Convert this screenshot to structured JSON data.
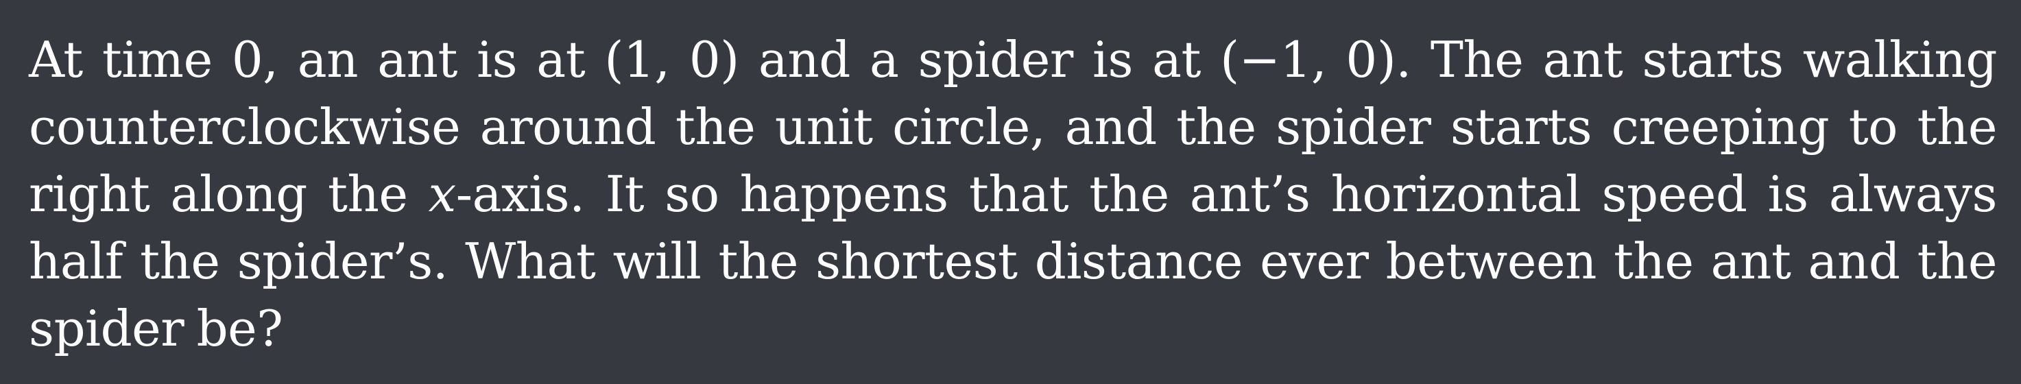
{
  "problem": {
    "lines": [
      "At time 0, an ant is at (1, 0) and a spider is at (−1, 0). The ant starts walking",
      "counterclockwise around the unit circle, and the spider starts creeping to the",
      "right along the ",
      "x",
      "-axis. It so happens that the ant’s horizontal speed is always",
      "half the spider’s. What will the shortest distance ever between the ant and the",
      "spider be?"
    ]
  }
}
